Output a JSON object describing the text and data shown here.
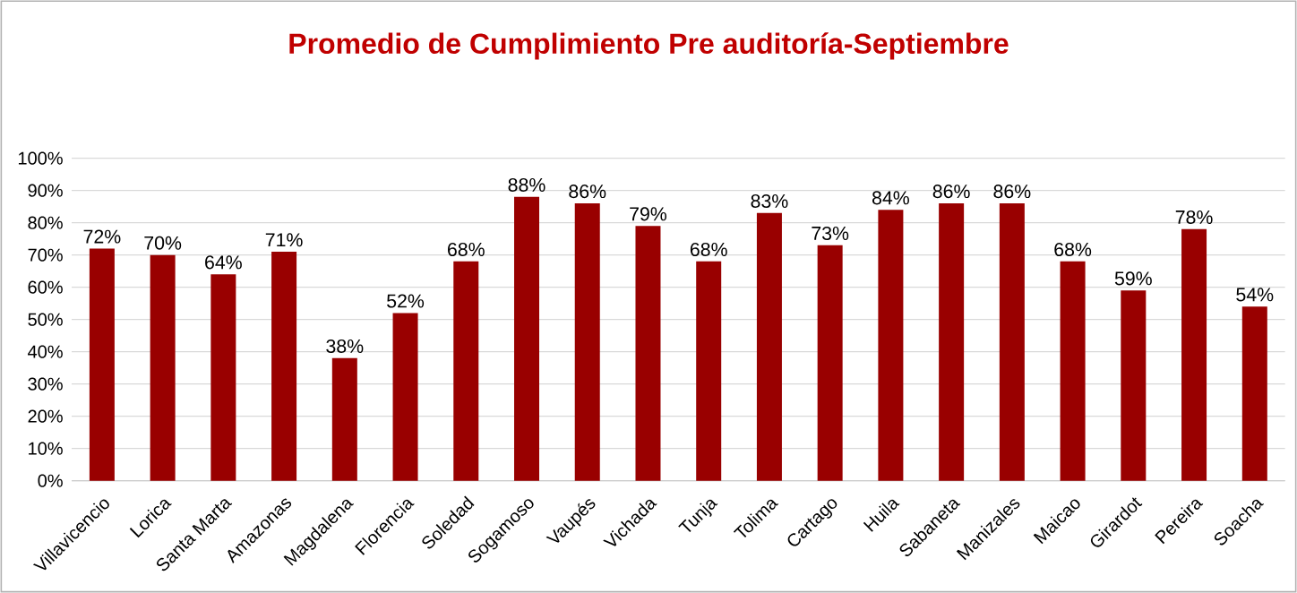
{
  "chart_data": {
    "type": "bar",
    "title": "Promedio de Cumplimiento  Pre auditoría-Septiembre",
    "categories": [
      "Villavicencio",
      "Lorica",
      "Santa Marta",
      "Amazonas",
      "Magdalena",
      "Florencia",
      "Soledad",
      "Sogamoso",
      "Vaupés",
      "Vichada",
      "Tunja",
      "Tolima",
      "Cartago",
      "Huila",
      "Sabaneta",
      "Manizales",
      "Maicao",
      "Girardot",
      "Pereira",
      "Soacha"
    ],
    "values": [
      72,
      70,
      64,
      71,
      38,
      52,
      68,
      88,
      86,
      79,
      68,
      83,
      73,
      84,
      86,
      86,
      68,
      59,
      78,
      54
    ],
    "value_labels": [
      "72%",
      "70%",
      "64%",
      "71%",
      "38%",
      "52%",
      "68%",
      "88%",
      "86%",
      "79%",
      "68%",
      "83%",
      "73%",
      "84%",
      "86%",
      "86%",
      "68%",
      "59%",
      "78%",
      "54%"
    ],
    "color": "#990000",
    "ylim": [
      0,
      100
    ],
    "yticks": [
      {
        "value": 0,
        "label": "0%"
      },
      {
        "value": 10,
        "label": "10%"
      },
      {
        "value": 20,
        "label": "20%"
      },
      {
        "value": 30,
        "label": "30%"
      },
      {
        "value": 40,
        "label": "40%"
      },
      {
        "value": 50,
        "label": "50%"
      },
      {
        "value": 60,
        "label": "60%"
      },
      {
        "value": 70,
        "label": "70%"
      },
      {
        "value": 80,
        "label": "80%"
      },
      {
        "value": 90,
        "label": "90%"
      },
      {
        "value": 100,
        "label": "100%"
      }
    ],
    "grid": "y"
  }
}
